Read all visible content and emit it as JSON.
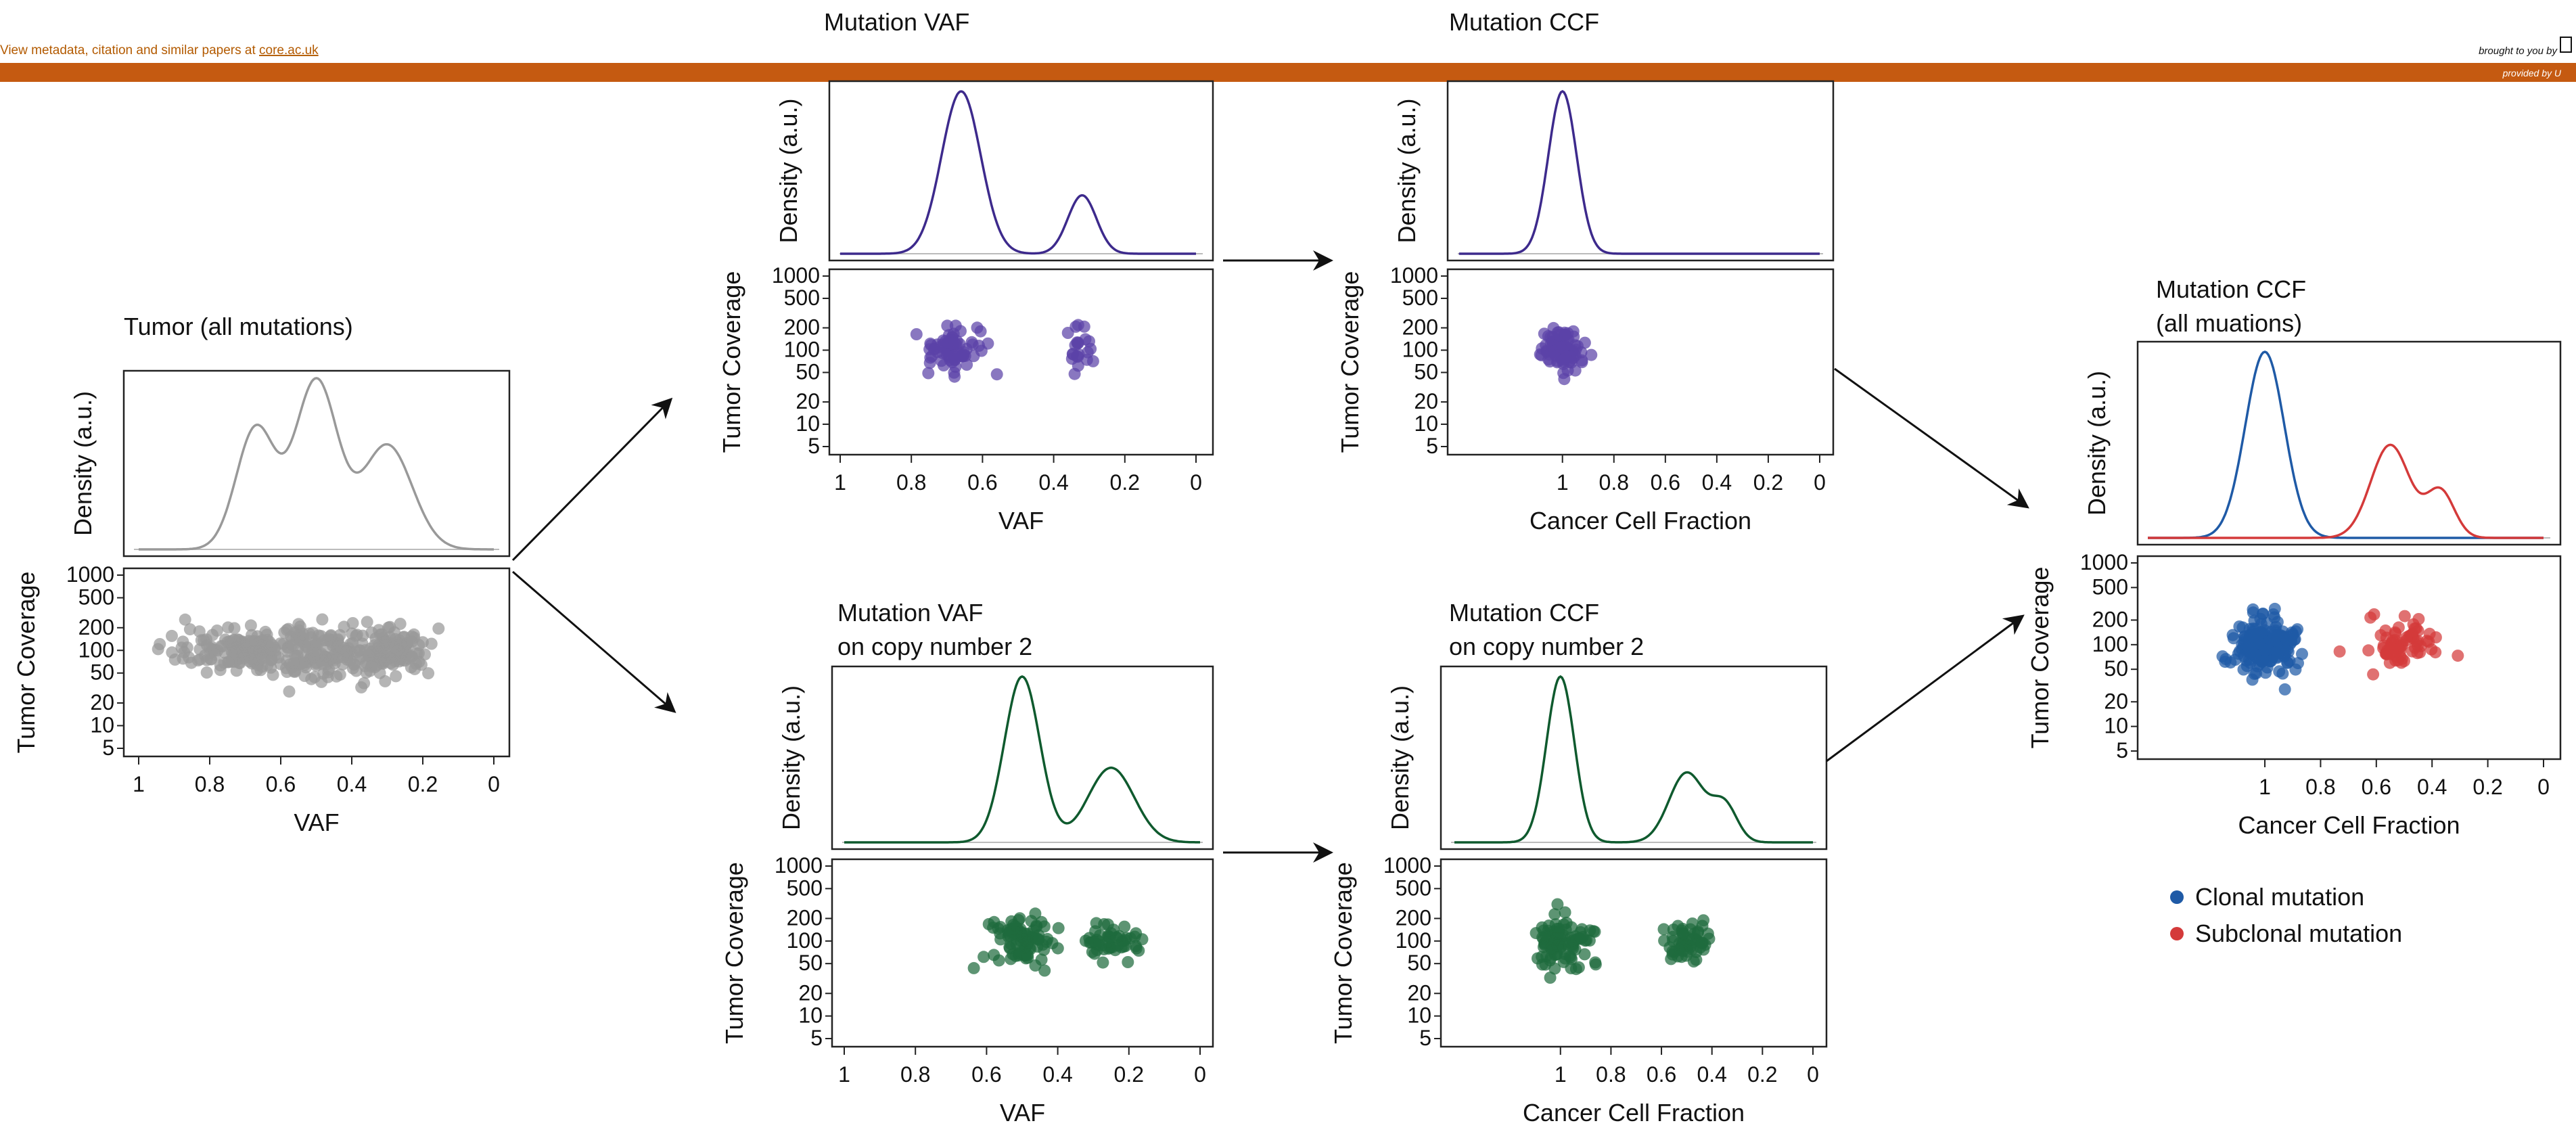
{
  "banner": {
    "left_text": "View metadata, citation and similar papers at ",
    "left_link": "core.ac.uk",
    "right_text": "brought to you by",
    "provided_text": "provided by U",
    "bar_color": "#c55a11"
  },
  "colors": {
    "gray": "#999999",
    "purple": "#3d2a8c",
    "purple_dot": "#5b43a8",
    "green": "#0f5a2e",
    "green_dot": "#1e6b3d",
    "blue": "#1f5aa6",
    "red": "#d43a3a"
  },
  "panels": [
    {
      "id": "tumor",
      "title_lines": [
        "Tumor (all mutations)"
      ],
      "density_ylabel": "Density (a.u.)",
      "scatter_ylabel": "Tumor Coverage",
      "xlabel": "VAF",
      "x_ticks": [
        "1",
        "0.8",
        "0.6",
        "0.4",
        "0.2",
        "0"
      ],
      "y_ticks": [
        "1000",
        "500",
        "200",
        "100",
        "50",
        "20",
        "10",
        "5"
      ],
      "color_key": "gray"
    },
    {
      "id": "vaf",
      "title_lines": [
        "Mutation VAF"
      ],
      "density_ylabel": "Density (a.u.)",
      "scatter_ylabel": "Tumor Coverage",
      "xlabel": "VAF",
      "x_ticks": [
        "1",
        "0.8",
        "0.6",
        "0.4",
        "0.2",
        "0"
      ],
      "y_ticks": [
        "1000",
        "500",
        "200",
        "100",
        "50",
        "20",
        "10",
        "5"
      ],
      "color_key": "purple"
    },
    {
      "id": "ccf",
      "title_lines": [
        "Mutation CCF"
      ],
      "density_ylabel": "Density (a.u.)",
      "scatter_ylabel": "Tumor Coverage",
      "xlabel": "Cancer Cell Fraction",
      "x_ticks": [
        "1",
        "0.8",
        "0.6",
        "0.4",
        "0.2",
        "0"
      ],
      "y_ticks": [
        "1000",
        "500",
        "200",
        "100",
        "50",
        "20",
        "10",
        "5"
      ],
      "color_key": "purple"
    },
    {
      "id": "vaf_cn2",
      "title_lines": [
        "Mutation VAF",
        "on copy number 2"
      ],
      "density_ylabel": "Density (a.u.)",
      "scatter_ylabel": "Tumor Coverage",
      "xlabel": "VAF",
      "x_ticks": [
        "1",
        "0.8",
        "0.6",
        "0.4",
        "0.2",
        "0"
      ],
      "y_ticks": [
        "1000",
        "500",
        "200",
        "100",
        "50",
        "20",
        "10",
        "5"
      ],
      "color_key": "green"
    },
    {
      "id": "ccf_cn2",
      "title_lines": [
        "Mutation CCF",
        "on copy number 2"
      ],
      "density_ylabel": "Density (a.u.)",
      "scatter_ylabel": "Tumor Coverage",
      "xlabel": "Cancer Cell Fraction",
      "x_ticks": [
        "1",
        "0.8",
        "0.6",
        "0.4",
        "0.2",
        "0"
      ],
      "y_ticks": [
        "1000",
        "500",
        "200",
        "100",
        "50",
        "20",
        "10",
        "5"
      ],
      "color_key": "green"
    },
    {
      "id": "ccf_all",
      "title_lines": [
        "Mutation CCF",
        "(all muations)"
      ],
      "density_ylabel": "Density (a.u.)",
      "scatter_ylabel": "Tumor Coverage",
      "xlabel": "Cancer Cell Fraction",
      "x_ticks": [
        "1",
        "0.8",
        "0.6",
        "0.4",
        "0.2",
        "0"
      ],
      "y_ticks": [
        "1000",
        "500",
        "200",
        "100",
        "50",
        "20",
        "10",
        "5"
      ],
      "color_key": "blue"
    }
  ],
  "legend": [
    {
      "label": "Clonal mutation",
      "color_key": "blue"
    },
    {
      "label": "Subclonal mutation",
      "color_key": "red"
    }
  ]
}
